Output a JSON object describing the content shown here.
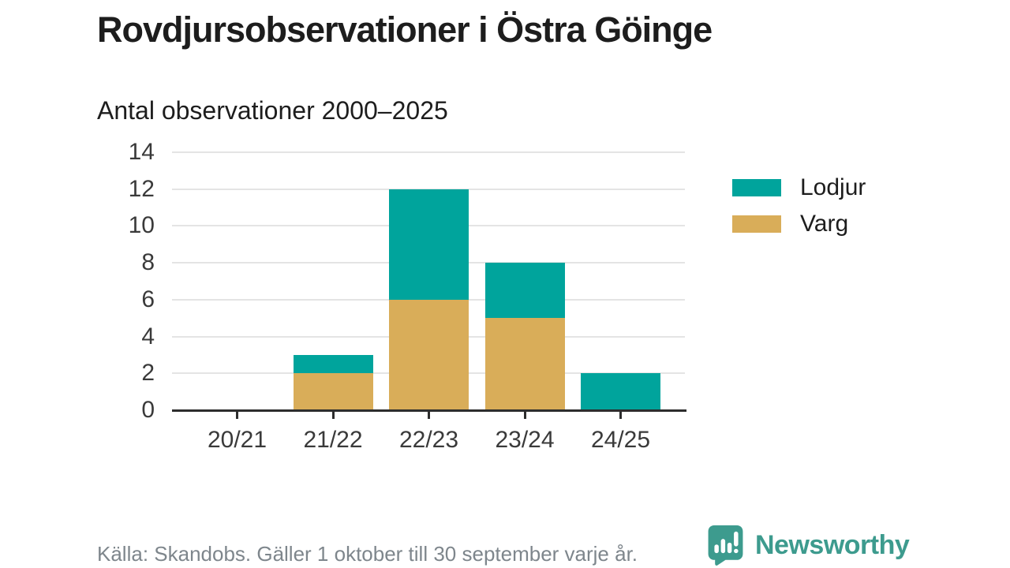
{
  "header": {
    "title": "Rovdjursobservationer i Östra Göinge",
    "subtitle": "Antal observationer 2000–2025"
  },
  "chart_data": {
    "type": "bar",
    "stacked": true,
    "title": "Rovdjursobservationer i Östra Göinge",
    "subtitle": "Antal observationer 2000–2025",
    "categories": [
      "20/21",
      "21/22",
      "22/23",
      "23/24",
      "24/25"
    ],
    "series": [
      {
        "name": "Lodjur",
        "color": "#00a49c",
        "values": [
          0,
          1,
          6,
          3,
          2
        ]
      },
      {
        "name": "Varg",
        "color": "#d9ad59",
        "values": [
          0,
          2,
          6,
          5,
          0
        ]
      }
    ],
    "stack_bottom_to_top": [
      "Varg",
      "Lodjur"
    ],
    "totals": [
      0,
      3,
      12,
      8,
      2
    ],
    "xlabel": "",
    "ylabel": "",
    "ylim": [
      0,
      14
    ],
    "yticks": [
      0,
      2,
      4,
      6,
      8,
      10,
      12,
      14
    ],
    "grid": true,
    "legend_position": "right"
  },
  "legend": {
    "items": [
      {
        "label": "Lodjur",
        "color": "#00a49c"
      },
      {
        "label": "Varg",
        "color": "#d9ad59"
      }
    ]
  },
  "footer": {
    "source": "Källa: Skandobs. Gäller 1 oktober till 30 september varje år.",
    "brand": "Newsworthy"
  },
  "colors": {
    "lodjur_teal": "#00a49c",
    "varg_tan": "#d9ad59",
    "brand_teal": "#3d9b8e",
    "axis_dark": "#2d2d2d",
    "gridline_gray": "#e4e4e4",
    "text_dark": "#1d1d1d",
    "text_gray": "#7e868c"
  }
}
